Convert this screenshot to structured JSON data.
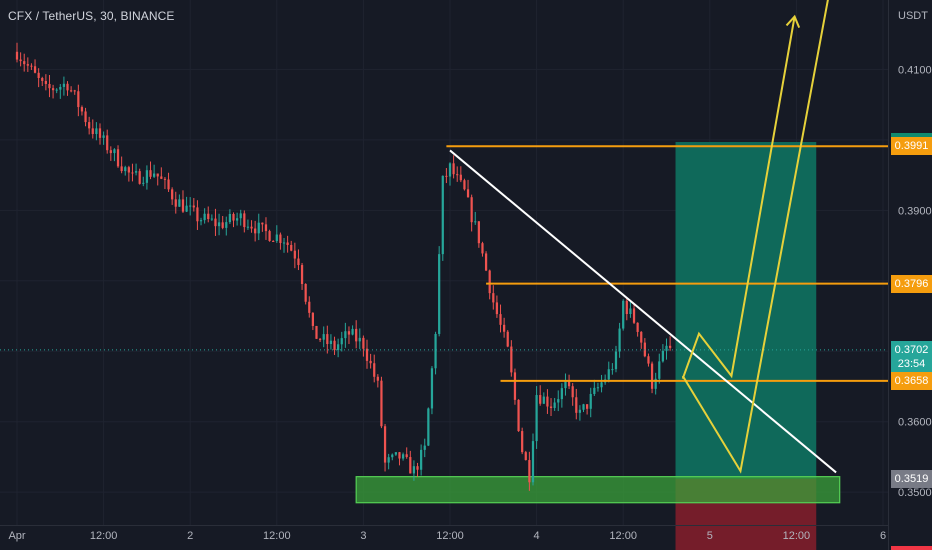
{
  "header": {
    "symbol": "CFX / TetherUS, 30, BINANCE"
  },
  "price_axis": {
    "unit": "USDT"
  },
  "colors": {
    "background": "#161a25",
    "grid": "#1f2330",
    "up": "#26a69a",
    "down": "#ef5350",
    "orange_line": "#f59d0e",
    "trend_line": "#ffffff",
    "projection": "#e6d13a",
    "long_target": "#0f6e5d",
    "long_stop": "#7a1e2a",
    "support_zone": "#3aa03a"
  },
  "chart_data": {
    "type": "candlestick",
    "y_range": [
      0.3425,
      0.419
    ],
    "price_ticks": [
      "0.4100",
      "0.3900",
      "0.3600",
      "0.3500"
    ],
    "time_ticks": [
      {
        "label": "Apr",
        "x": 0.0
      },
      {
        "label": "12:00",
        "x": 24.0
      },
      {
        "label": "2",
        "x": 48.0
      },
      {
        "label": "12:00",
        "x": 72.0
      },
      {
        "label": "3",
        "x": 96.0
      },
      {
        "label": "12:00",
        "x": 120.0
      },
      {
        "label": "4",
        "x": 144.0
      },
      {
        "label": "12:00",
        "x": 168.0
      },
      {
        "label": "5",
        "x": 192.0
      },
      {
        "label": "12:00",
        "x": 216.0
      },
      {
        "label": "6",
        "x": 240.0
      }
    ],
    "last_candle_x": 181.5,
    "path": [
      [
        0,
        0.4125
      ],
      [
        8,
        0.407
      ],
      [
        14,
        0.408
      ],
      [
        20,
        0.402
      ],
      [
        26,
        0.3985
      ],
      [
        32,
        0.3945
      ],
      [
        38,
        0.3955
      ],
      [
        44,
        0.3915
      ],
      [
        50,
        0.389
      ],
      [
        56,
        0.388
      ],
      [
        62,
        0.389
      ],
      [
        68,
        0.387
      ],
      [
        74,
        0.386
      ],
      [
        78,
        0.383
      ],
      [
        82,
        0.3725
      ],
      [
        88,
        0.3705
      ],
      [
        92,
        0.3725
      ],
      [
        96,
        0.371
      ],
      [
        100,
        0.365
      ],
      [
        102,
        0.354
      ],
      [
        106,
        0.355
      ],
      [
        110,
        0.353
      ],
      [
        113,
        0.356
      ],
      [
        116,
        0.373
      ],
      [
        118,
        0.394
      ],
      [
        120,
        0.396
      ],
      [
        124,
        0.3925
      ],
      [
        128,
        0.386
      ],
      [
        132,
        0.377
      ],
      [
        136,
        0.37
      ],
      [
        140,
        0.356
      ],
      [
        142,
        0.3525
      ],
      [
        144,
        0.364
      ],
      [
        148,
        0.3625
      ],
      [
        152,
        0.365
      ],
      [
        156,
        0.361
      ],
      [
        160,
        0.364
      ],
      [
        164,
        0.367
      ],
      [
        166,
        0.369
      ],
      [
        168,
        0.377
      ],
      [
        172,
        0.3735
      ],
      [
        176,
        0.3655
      ],
      [
        180,
        0.3705
      ],
      [
        181.5,
        0.3702
      ]
    ],
    "lines": {
      "resistance_top": 0.3991,
      "resistance_mid": 0.3796,
      "support_mid": 0.3658,
      "current": 0.3702
    },
    "support_zone": {
      "x_from": 94.0,
      "x_to": 228.0,
      "y_from": 0.3485,
      "y_to": 0.3522
    },
    "trend_line": {
      "from": [
        120.0,
        0.3985
      ],
      "to": [
        227.0,
        0.3528
      ]
    },
    "long_position": {
      "x_from": 182.5,
      "x_to": 221.5,
      "entry": 0.3519,
      "target": 0.3997,
      "stop": 0.3411
    },
    "projections": [
      [
        [
          184.5,
          0.3661
        ],
        [
          189.0,
          0.3725
        ],
        [
          198.0,
          0.3665
        ],
        [
          215.5,
          0.4175
        ],
        [
          213.5,
          0.415
        ]
      ],
      [
        [
          184.5,
          0.3665
        ],
        [
          200.5,
          0.353
        ],
        [
          225.5,
          0.422
        ],
        [
          223.5,
          0.4195
        ]
      ]
    ],
    "badges": [
      {
        "label": "0.3997",
        "value": 0.3997,
        "color": "#0f8a6e"
      },
      {
        "label": "0.3991",
        "value": 0.3991,
        "color": "#f59d0e"
      },
      {
        "label": "0.3796",
        "value": 0.3796,
        "color": "#f59d0e"
      },
      {
        "label": "0.3702",
        "sub": "23:54",
        "value": 0.3702,
        "color": "#26a69a"
      },
      {
        "label": "0.3658",
        "value": 0.3658,
        "color": "#f59d0e"
      },
      {
        "label": "0.3519",
        "value": 0.3519,
        "color": "#787b86"
      },
      {
        "label": "0.3411",
        "value": 0.3411,
        "color": "#f23645"
      }
    ]
  }
}
